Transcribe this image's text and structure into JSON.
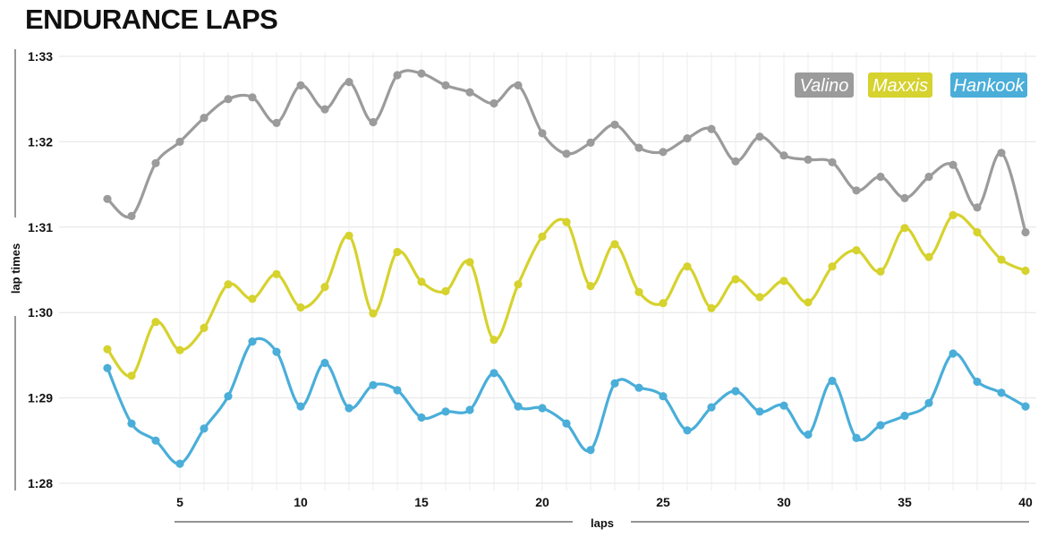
{
  "chart_data": {
    "type": "line",
    "title": "ENDURANCE LAPS",
    "xlabel": "laps",
    "ylabel": "lap times",
    "xlim": [
      2,
      40
    ],
    "xticks": [
      5,
      10,
      15,
      20,
      25,
      30,
      35,
      40
    ],
    "yticks": [
      {
        "value": 88,
        "label": "1:28"
      },
      {
        "value": 89,
        "label": "1:29"
      },
      {
        "value": 90,
        "label": "1:30"
      },
      {
        "value": 91,
        "label": "1:31"
      },
      {
        "value": 92,
        "label": "1:32"
      },
      {
        "value": 93,
        "label": "1:33"
      }
    ],
    "ylim": [
      88,
      93
    ],
    "grid": true,
    "legend_position": "top-right",
    "x": [
      2,
      3,
      4,
      5,
      6,
      7,
      8,
      9,
      10,
      11,
      12,
      13,
      14,
      15,
      16,
      17,
      18,
      19,
      20,
      21,
      22,
      23,
      24,
      25,
      26,
      27,
      28,
      29,
      30,
      31,
      32,
      33,
      34,
      35,
      36,
      37,
      38,
      39,
      40
    ],
    "series": [
      {
        "name": "Valino",
        "color": "#9b9b9b",
        "values": [
          91.33,
          91.13,
          91.75,
          92.0,
          92.28,
          92.5,
          92.52,
          92.22,
          92.66,
          92.38,
          92.7,
          92.23,
          92.78,
          92.8,
          92.66,
          92.58,
          92.45,
          92.66,
          92.1,
          91.86,
          91.99,
          92.2,
          91.93,
          91.88,
          92.04,
          92.15,
          91.77,
          92.06,
          91.84,
          91.79,
          91.76,
          91.43,
          91.59,
          91.34,
          91.59,
          91.73,
          91.23,
          91.87,
          90.94
        ]
      },
      {
        "name": "Maxxis",
        "color": "#d6d22e",
        "values": [
          89.57,
          89.26,
          89.89,
          89.56,
          89.82,
          90.33,
          90.16,
          90.45,
          90.06,
          90.3,
          90.9,
          89.99,
          90.71,
          90.36,
          90.25,
          90.59,
          89.68,
          90.33,
          90.89,
          91.06,
          90.31,
          90.8,
          90.24,
          90.11,
          90.54,
          90.05,
          90.39,
          90.18,
          90.37,
          90.12,
          90.54,
          90.73,
          90.48,
          90.99,
          90.65,
          91.14,
          90.94,
          90.62,
          90.49
        ]
      },
      {
        "name": "Hankook",
        "color": "#4aaed9",
        "values": [
          89.35,
          88.7,
          88.5,
          88.23,
          88.64,
          89.02,
          89.66,
          89.54,
          88.9,
          89.41,
          88.88,
          89.15,
          89.09,
          88.77,
          88.84,
          88.86,
          89.29,
          88.9,
          88.88,
          88.7,
          88.39,
          89.17,
          89.12,
          89.02,
          88.62,
          88.89,
          89.08,
          88.84,
          88.91,
          88.57,
          89.2,
          88.53,
          88.68,
          88.79,
          88.94,
          89.52,
          89.19,
          89.06,
          88.9
        ]
      }
    ]
  }
}
